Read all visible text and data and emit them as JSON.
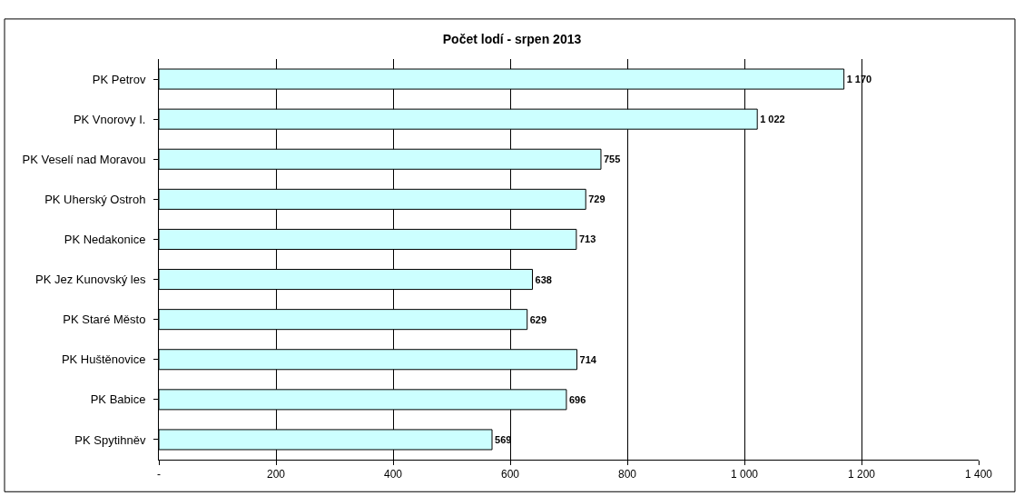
{
  "chart_data": {
    "type": "bar",
    "orientation": "horizontal",
    "title": "Počet lodí - srpen 2013",
    "categories": [
      "PK Petrov",
      "PK Vnorovy I.",
      "PK Veselí nad Moravou",
      "PK Uherský Ostroh",
      "PK Nedakonice",
      "PK Jez Kunovský les",
      "PK Staré Město",
      "PK Huštěnovice",
      "PK Babice",
      "PK Spytihněv"
    ],
    "values": [
      1170,
      1022,
      755,
      729,
      713,
      638,
      629,
      714,
      696,
      569
    ],
    "value_labels": [
      "1 170",
      "1 022",
      "755",
      "729",
      "713",
      "638",
      "629",
      "714",
      "696",
      "569"
    ],
    "color": "#ccffff",
    "xlim": [
      0,
      1400
    ],
    "xticks": [
      {
        "value": 0,
        "label": "-"
      },
      200,
      400,
      600,
      800,
      {
        "value": 1000,
        "label": "1 000"
      },
      {
        "value": 1200,
        "label": "1 200"
      },
      {
        "value": 1400,
        "label": "1 400"
      }
    ],
    "grid": "x",
    "legend": false
  }
}
